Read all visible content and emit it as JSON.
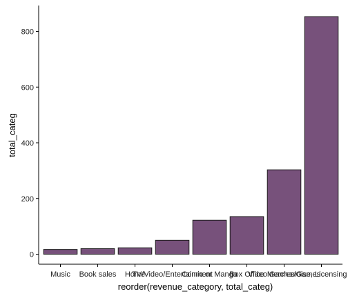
{
  "chart_data": {
    "type": "bar",
    "xlabel": "reorder(revenue_category, total_categ)",
    "ylabel": "total_categ",
    "categories": [
      "Music",
      "Book sales",
      "Home",
      "TV/Video/Entertainment",
      "Comic or Manga",
      "Box Office",
      "Video Games/Games",
      "Merchandise, Licensing & Retail"
    ],
    "values": [
      17,
      20,
      23,
      50,
      122,
      135,
      303,
      853
    ],
    "ylim": [
      0,
      895
    ],
    "yticks": [
      0,
      200,
      400,
      600,
      800
    ],
    "bar_fill": "#77517b",
    "bar_stroke": "#1a1a1a",
    "grid": false
  }
}
